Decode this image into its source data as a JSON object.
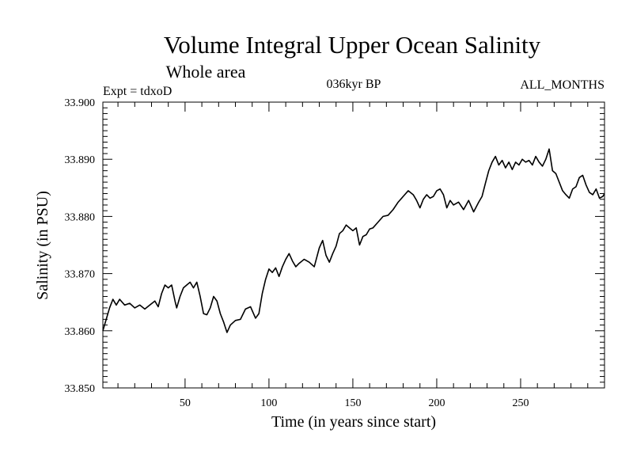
{
  "chart_data": {
    "type": "line",
    "title": "Volume Integral Upper Ocean Salinity",
    "subtitle": "Whole area",
    "annotations": {
      "left": "Expt = tdxoD",
      "center": "036kyr BP",
      "right": "ALL_MONTHS"
    },
    "xlabel": "Time (in years since start)",
    "ylabel": "Salinity (in PSU)",
    "xlim": [
      1,
      300
    ],
    "ylim": [
      33.85,
      33.9
    ],
    "x_ticks": [
      50,
      100,
      150,
      200,
      250
    ],
    "x_tick_labels": [
      "50",
      "100",
      "150",
      "200",
      "250"
    ],
    "y_ticks": [
      33.85,
      33.86,
      33.87,
      33.88,
      33.89,
      33.9
    ],
    "y_tick_labels": [
      "33.850",
      "33.860",
      "33.870",
      "33.880",
      "33.890",
      "33.900"
    ],
    "grid": false,
    "series": [
      {
        "points": [
          [
            1,
            33.86
          ],
          [
            3,
            33.862
          ],
          [
            5,
            33.864
          ],
          [
            7,
            33.8655
          ],
          [
            9,
            33.8645
          ],
          [
            11,
            33.8655
          ],
          [
            14,
            33.8645
          ],
          [
            17,
            33.8648
          ],
          [
            20,
            33.864
          ],
          [
            23,
            33.8645
          ],
          [
            26,
            33.8638
          ],
          [
            29,
            33.8645
          ],
          [
            32,
            33.8652
          ],
          [
            34,
            33.8642
          ],
          [
            36,
            33.8665
          ],
          [
            38,
            33.868
          ],
          [
            40,
            33.8675
          ],
          [
            42,
            33.868
          ],
          [
            44,
            33.8652
          ],
          [
            45,
            33.864
          ],
          [
            47,
            33.866
          ],
          [
            49,
            33.8675
          ],
          [
            51,
            33.868
          ],
          [
            53,
            33.8685
          ],
          [
            55,
            33.8675
          ],
          [
            57,
            33.8685
          ],
          [
            59,
            33.866
          ],
          [
            61,
            33.863
          ],
          [
            63,
            33.8628
          ],
          [
            65,
            33.864
          ],
          [
            67,
            33.866
          ],
          [
            69,
            33.8652
          ],
          [
            71,
            33.863
          ],
          [
            73,
            33.8615
          ],
          [
            75,
            33.8597
          ],
          [
            77,
            33.861
          ],
          [
            80,
            33.8618
          ],
          [
            83,
            33.862
          ],
          [
            86,
            33.8638
          ],
          [
            89,
            33.8642
          ],
          [
            92,
            33.8622
          ],
          [
            94,
            33.863
          ],
          [
            96,
            33.8665
          ],
          [
            98,
            33.869
          ],
          [
            100,
            33.8708
          ],
          [
            102,
            33.8702
          ],
          [
            104,
            33.871
          ],
          [
            106,
            33.8695
          ],
          [
            108,
            33.8712
          ],
          [
            110,
            33.8725
          ],
          [
            112,
            33.8735
          ],
          [
            114,
            33.8722
          ],
          [
            116,
            33.8712
          ],
          [
            118,
            33.8718
          ],
          [
            121,
            33.8725
          ],
          [
            124,
            33.872
          ],
          [
            127,
            33.8712
          ],
          [
            130,
            33.8745
          ],
          [
            132,
            33.8758
          ],
          [
            134,
            33.8732
          ],
          [
            136,
            33.872
          ],
          [
            138,
            33.8735
          ],
          [
            140,
            33.8748
          ],
          [
            142,
            33.877
          ],
          [
            144,
            33.8775
          ],
          [
            146,
            33.8785
          ],
          [
            148,
            33.878
          ],
          [
            150,
            33.8775
          ],
          [
            152,
            33.878
          ],
          [
            154,
            33.875
          ],
          [
            156,
            33.8765
          ],
          [
            158,
            33.8768
          ],
          [
            160,
            33.8778
          ],
          [
            162,
            33.878
          ],
          [
            165,
            33.879
          ],
          [
            168,
            33.88
          ],
          [
            171,
            33.8802
          ],
          [
            174,
            33.8812
          ],
          [
            177,
            33.8825
          ],
          [
            180,
            33.8835
          ],
          [
            183,
            33.8845
          ],
          [
            186,
            33.8838
          ],
          [
            188,
            33.8828
          ],
          [
            190,
            33.8815
          ],
          [
            192,
            33.883
          ],
          [
            194,
            33.8838
          ],
          [
            196,
            33.8832
          ],
          [
            198,
            33.8835
          ],
          [
            200,
            33.8845
          ],
          [
            202,
            33.8848
          ],
          [
            204,
            33.8838
          ],
          [
            206,
            33.8815
          ],
          [
            208,
            33.8828
          ],
          [
            210,
            33.882
          ],
          [
            213,
            33.8825
          ],
          [
            216,
            33.8812
          ],
          [
            219,
            33.8828
          ],
          [
            222,
            33.8808
          ],
          [
            225,
            33.8825
          ],
          [
            227,
            33.8835
          ],
          [
            229,
            33.8858
          ],
          [
            231,
            33.888
          ],
          [
            233,
            33.8895
          ],
          [
            235,
            33.8905
          ],
          [
            237,
            33.889
          ],
          [
            239,
            33.8898
          ],
          [
            241,
            33.8885
          ],
          [
            243,
            33.8895
          ],
          [
            245,
            33.8882
          ],
          [
            247,
            33.8895
          ],
          [
            249,
            33.889
          ],
          [
            251,
            33.89
          ],
          [
            253,
            33.8895
          ],
          [
            255,
            33.8898
          ],
          [
            257,
            33.889
          ],
          [
            259,
            33.8905
          ],
          [
            261,
            33.8895
          ],
          [
            263,
            33.8888
          ],
          [
            265,
            33.89
          ],
          [
            267,
            33.8918
          ],
          [
            269,
            33.888
          ],
          [
            271,
            33.8875
          ],
          [
            273,
            33.886
          ],
          [
            275,
            33.8845
          ],
          [
            277,
            33.8838
          ],
          [
            279,
            33.8832
          ],
          [
            281,
            33.8848
          ],
          [
            283,
            33.8852
          ],
          [
            285,
            33.8868
          ],
          [
            287,
            33.8872
          ],
          [
            289,
            33.8855
          ],
          [
            291,
            33.8842
          ],
          [
            293,
            33.8838
          ],
          [
            295,
            33.8848
          ],
          [
            297,
            33.8832
          ],
          [
            299,
            33.8835
          ],
          [
            300,
            33.884
          ]
        ]
      }
    ]
  }
}
